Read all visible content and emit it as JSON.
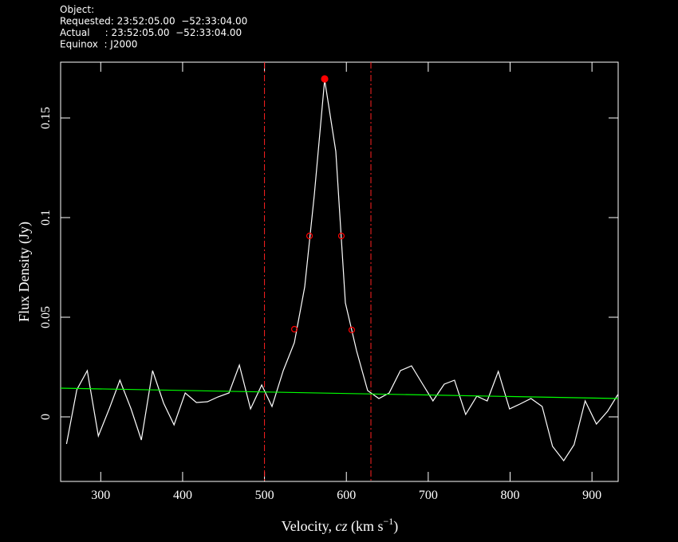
{
  "header": [
    "Object:",
    "Requested: 23:52:05.00  −52:33:04.00",
    "Actual     : 23:52:05.00  −52:33:04.00",
    "Equinox  : J2000"
  ],
  "chart_data": {
    "type": "line",
    "x_label": [
      "Velocity, ",
      "cz",
      " (km s",
      "−1",
      ")"
    ],
    "y_label": "Flux Density (Jy)",
    "xlim": [
      251,
      932
    ],
    "ylim": [
      -0.0324,
      0.178
    ],
    "xticks": [
      300,
      400,
      500,
      600,
      700,
      800,
      900
    ],
    "yticks": [
      0,
      0.05,
      0.1,
      0.15
    ],
    "series": [
      {
        "color": "#ffffff",
        "x": [
          258.2,
          270.8,
          283.5,
          297.1,
          310.7,
          323.4,
          337.0,
          349.6,
          363.3,
          376.9,
          389.5,
          403.2,
          416.8,
          430.4,
          443.1,
          456.7,
          469.3,
          483.0,
          496.6,
          509.2,
          522.9,
          536.5,
          549.1,
          560.8,
          573.5,
          587.1,
          598.8,
          612.4,
          626.0,
          639.7,
          652.3,
          666.0,
          679.6,
          693.2,
          705.8,
          719.5,
          732.1,
          745.7,
          759.4,
          772.0,
          785.6,
          799.3,
          811.9,
          825.5,
          839.2,
          851.8,
          865.5,
          878.1,
          891.7,
          905.4,
          919.0,
          931.6
        ],
        "values": [
          -0.0136,
          0.0136,
          0.0232,
          -0.0096,
          0.0044,
          0.0184,
          0.004,
          -0.0116,
          0.0232,
          0.0068,
          -0.004,
          0.012,
          0.0072,
          0.0076,
          0.01,
          0.012,
          0.026,
          0.004,
          0.016,
          0.0052,
          0.0232,
          0.0372,
          0.0652,
          0.1112,
          0.1692,
          0.1332,
          0.0572,
          0.0332,
          0.0132,
          0.0092,
          0.012,
          0.0232,
          0.0256,
          0.0164,
          0.008,
          0.0164,
          0.0184,
          0.0012,
          0.0104,
          0.008,
          0.0228,
          0.004,
          0.0064,
          0.0092,
          0.0052,
          -0.0148,
          -0.022,
          -0.014,
          0.008,
          -0.0036,
          0.0028,
          0.0112
        ]
      },
      {
        "color": "#00ff00",
        "x": [
          251,
          932
        ],
        "values": [
          0.0144,
          0.0092
        ]
      }
    ],
    "vlines": {
      "color": "#ff2020",
      "x": [
        500,
        630
      ]
    },
    "markers": {
      "color": "#ff0000",
      "x": [
        573.5,
        536.5,
        555,
        593.9,
        606.6
      ],
      "values": [
        0.1696,
        0.044,
        0.0908,
        0.0908,
        0.0436
      ],
      "filled": [
        true,
        false,
        false,
        false,
        false
      ]
    }
  }
}
